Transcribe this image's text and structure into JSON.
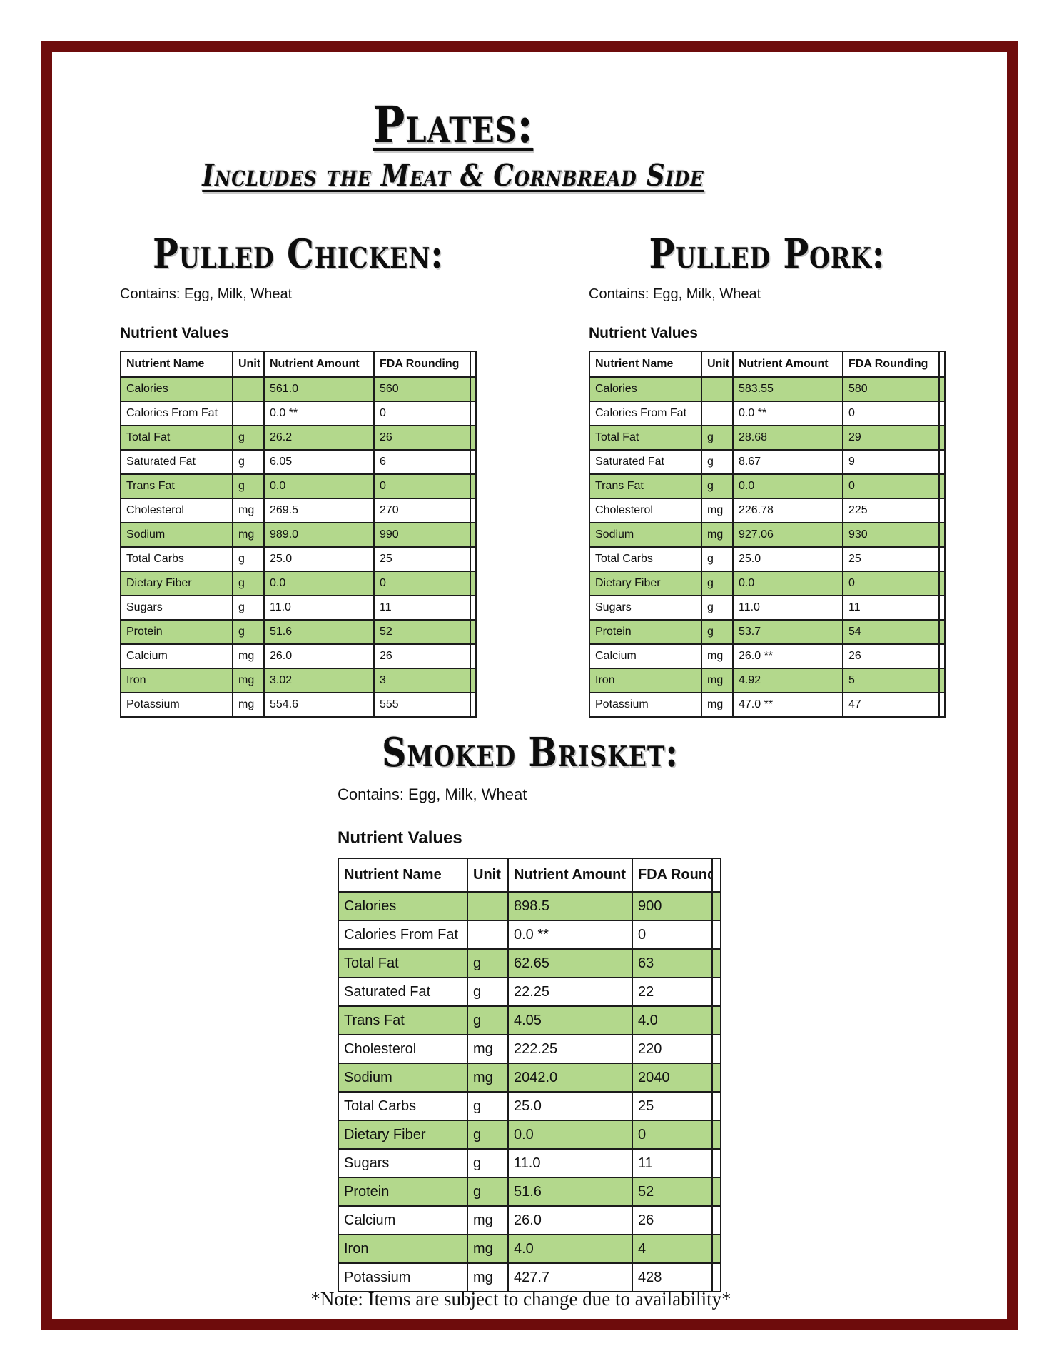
{
  "page": {
    "title": "Plates:",
    "subtitle": "Includes the Meat & Cornbread Side",
    "note": "*Note: Items are subject to change due to availability*",
    "frame_color": "#6e0c0c",
    "row_highlight_color": "#b3d88c"
  },
  "table_headers": [
    "Nutrient Name",
    "Unit",
    "Nutrient Amount",
    "FDA Rounding"
  ],
  "sections": [
    {
      "heading": "Pulled Chicken:",
      "contains": "Contains: Egg, Milk, Wheat",
      "table_label": "Nutrient Values",
      "rows": [
        [
          "Calories",
          "",
          "561.0",
          "560"
        ],
        [
          "Calories From Fat",
          "",
          "0.0 **",
          "0"
        ],
        [
          "Total Fat",
          "g",
          "26.2",
          "26"
        ],
        [
          "Saturated Fat",
          "g",
          "6.05",
          "6"
        ],
        [
          "Trans Fat",
          "g",
          "0.0",
          "0"
        ],
        [
          "Cholesterol",
          "mg",
          "269.5",
          "270"
        ],
        [
          "Sodium",
          "mg",
          "989.0",
          "990"
        ],
        [
          "Total Carbs",
          "g",
          "25.0",
          "25"
        ],
        [
          "Dietary Fiber",
          "g",
          "0.0",
          "0"
        ],
        [
          "Sugars",
          "g",
          "11.0",
          "11"
        ],
        [
          "Protein",
          "g",
          "51.6",
          "52"
        ],
        [
          "Calcium",
          "mg",
          "26.0",
          "26"
        ],
        [
          "Iron",
          "mg",
          "3.02",
          "3"
        ],
        [
          "Potassium",
          "mg",
          "554.6",
          "555"
        ]
      ]
    },
    {
      "heading": "Pulled Pork:",
      "contains": "Contains: Egg, Milk, Wheat",
      "table_label": "Nutrient Values",
      "rows": [
        [
          "Calories",
          "",
          "583.55",
          "580"
        ],
        [
          "Calories From Fat",
          "",
          "0.0 **",
          "0"
        ],
        [
          "Total Fat",
          "g",
          "28.68",
          "29"
        ],
        [
          "Saturated Fat",
          "g",
          "8.67",
          "9"
        ],
        [
          "Trans Fat",
          "g",
          "0.0",
          "0"
        ],
        [
          "Cholesterol",
          "mg",
          "226.78",
          "225"
        ],
        [
          "Sodium",
          "mg",
          "927.06",
          "930"
        ],
        [
          "Total Carbs",
          "g",
          "25.0",
          "25"
        ],
        [
          "Dietary Fiber",
          "g",
          "0.0",
          "0"
        ],
        [
          "Sugars",
          "g",
          "11.0",
          "11"
        ],
        [
          "Protein",
          "g",
          "53.7",
          "54"
        ],
        [
          "Calcium",
          "mg",
          "26.0 **",
          "26"
        ],
        [
          "Iron",
          "mg",
          "4.92",
          "5"
        ],
        [
          "Potassium",
          "mg",
          "47.0 **",
          "47"
        ]
      ]
    },
    {
      "heading": "Smoked Brisket:",
      "contains": "Contains: Egg, Milk, Wheat",
      "table_label": "Nutrient Values",
      "rows": [
        [
          "Calories",
          "",
          "898.5",
          "900"
        ],
        [
          "Calories From Fat",
          "",
          "0.0 **",
          "0"
        ],
        [
          "Total Fat",
          "g",
          "62.65",
          "63"
        ],
        [
          "Saturated Fat",
          "g",
          "22.25",
          "22"
        ],
        [
          "Trans Fat",
          "g",
          "4.05",
          "4.0"
        ],
        [
          "Cholesterol",
          "mg",
          "222.25",
          "220"
        ],
        [
          "Sodium",
          "mg",
          "2042.0",
          "2040"
        ],
        [
          "Total Carbs",
          "g",
          "25.0",
          "25"
        ],
        [
          "Dietary Fiber",
          "g",
          "0.0",
          "0"
        ],
        [
          "Sugars",
          "g",
          "11.0",
          "11"
        ],
        [
          "Protein",
          "g",
          "51.6",
          "52"
        ],
        [
          "Calcium",
          "mg",
          "26.0",
          "26"
        ],
        [
          "Iron",
          "mg",
          "4.0",
          "4"
        ],
        [
          "Potassium",
          "mg",
          "427.7",
          "428"
        ]
      ]
    }
  ]
}
